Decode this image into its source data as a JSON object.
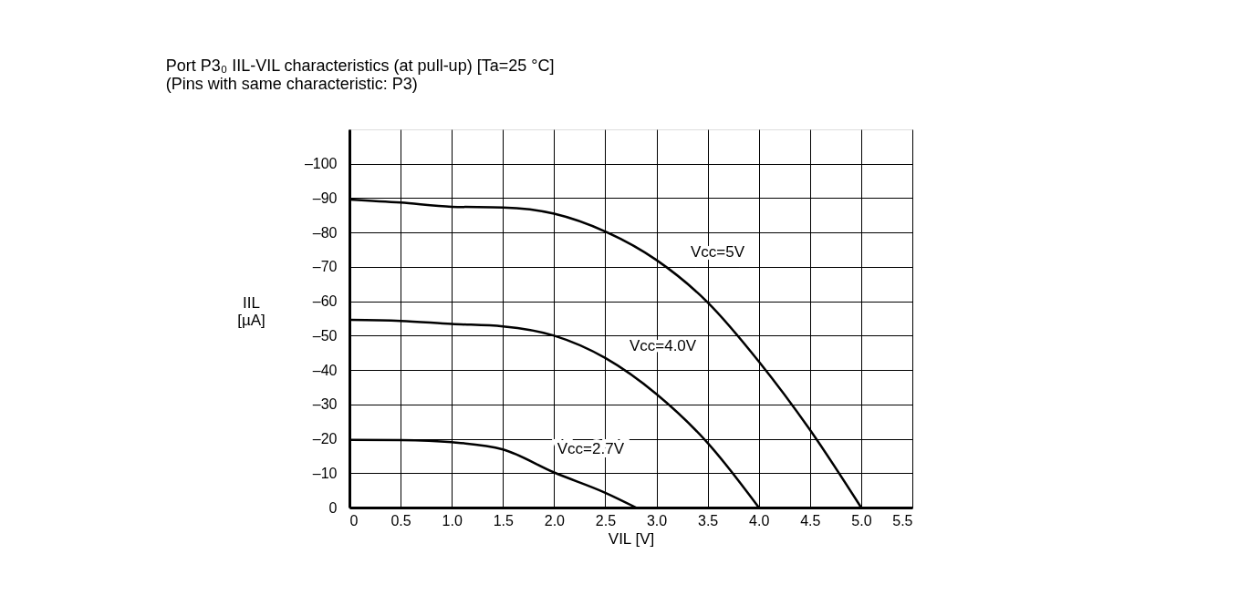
{
  "chart_data": {
    "type": "line",
    "title": "Port P3₀ IIL-VIL characteristics (at pull-up) [Ta=25 °C]",
    "subtitle": "(Pins with same characteristic: P3)",
    "xlabel": "VIL [V]",
    "ylabel": "IIL\n[µA]",
    "series": [
      {
        "name": "Vcc=5V",
        "color": "#000000",
        "x": [
          0,
          0.5,
          1.0,
          1.5,
          2.0,
          2.5,
          3.0,
          3.5,
          4.0,
          4.5,
          5.0
        ],
        "values": [
          -89.6,
          -88.7,
          -87.5,
          -87.3,
          -85.5,
          -80.3,
          -72,
          -59.7,
          -42.5,
          -22.6,
          0
        ]
      },
      {
        "name": "Vcc=4.0V",
        "color": "#000000",
        "x": [
          0,
          0.5,
          1.0,
          1.5,
          2.0,
          2.5,
          3.0,
          3.5,
          4.0
        ],
        "values": [
          -54.6,
          -54.3,
          -53.4,
          -52.7,
          -50,
          -43.5,
          -33,
          -18.8,
          0
        ]
      },
      {
        "name": "Vcc=2.7V",
        "color": "#000000",
        "x": [
          0,
          0.5,
          1.0,
          1.5,
          2.0,
          2.5,
          2.8
        ],
        "values": [
          -19.7,
          -19.6,
          -19,
          -16.9,
          -10.2,
          -4.3,
          0
        ]
      }
    ],
    "xlim": [
      0,
      5.5
    ],
    "ylim": [
      0,
      -110
    ],
    "xticks": [
      0,
      0.5,
      {
        "value": 1,
        "label": "1.0"
      },
      1.5,
      {
        "value": 2,
        "label": "2.0"
      },
      2.5,
      {
        "value": 3,
        "label": "3.0"
      },
      3.5,
      {
        "value": 4,
        "label": "4.0"
      },
      4.5,
      {
        "value": 5,
        "label": "5.0"
      },
      5.5
    ],
    "yticks": [
      0,
      {
        "value": -10,
        "label": "–10"
      },
      {
        "value": -20,
        "label": "–20"
      },
      {
        "value": -30,
        "label": "–30"
      },
      {
        "value": -40,
        "label": "–40"
      },
      {
        "value": -50,
        "label": "–50"
      },
      {
        "value": -60,
        "label": "–60"
      },
      {
        "value": -70,
        "label": "–70"
      },
      {
        "value": -80,
        "label": "–80"
      },
      {
        "value": -90,
        "label": "–90"
      },
      {
        "value": -100,
        "label": "–100"
      }
    ],
    "grid": true,
    "marker": "none",
    "line_style": "solid",
    "legend": false
  }
}
